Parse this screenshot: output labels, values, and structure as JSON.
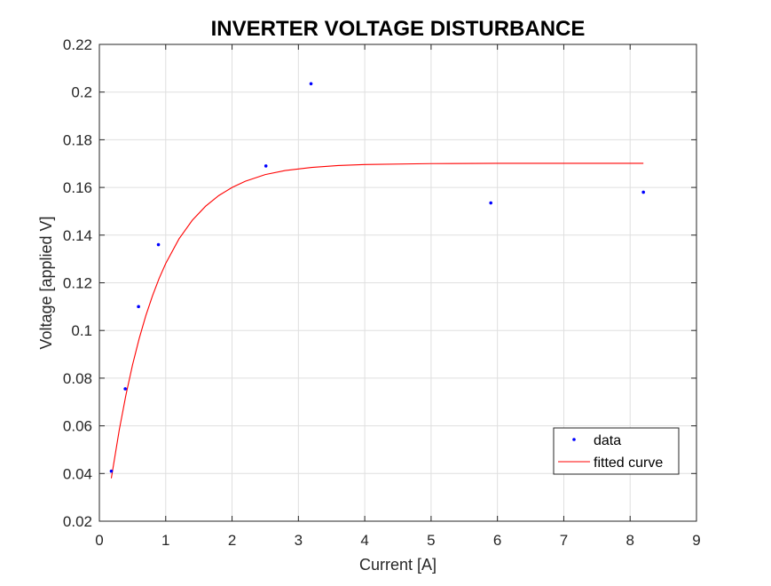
{
  "chart_data": {
    "type": "scatter",
    "title": "INVERTER VOLTAGE DISTURBANCE",
    "xlabel": "Current [A]",
    "ylabel": "Voltage [applied V]",
    "xlim": [
      0,
      9
    ],
    "ylim": [
      0.02,
      0.22
    ],
    "xticks": [
      0,
      1,
      2,
      3,
      4,
      5,
      6,
      7,
      8,
      9
    ],
    "yticks": [
      0.02,
      0.04,
      0.06,
      0.08,
      0.1,
      0.12,
      0.14,
      0.16,
      0.18,
      0.2,
      0.22
    ],
    "xtick_labels": [
      "0",
      "1",
      "2",
      "3",
      "4",
      "5",
      "6",
      "7",
      "8",
      "9"
    ],
    "ytick_labels": [
      "0.02",
      "0.04",
      "0.06",
      "0.08",
      "0.1",
      "0.12",
      "0.14",
      "0.16",
      "0.18",
      "0.2",
      "0.22"
    ],
    "grid": true,
    "legend_position": "bottom-right",
    "series": [
      {
        "name": "data",
        "style": "points",
        "color": "#0000ff",
        "x": [
          0.18,
          0.39,
          0.59,
          0.89,
          2.51,
          3.19,
          5.9,
          8.2
        ],
        "y": [
          0.041,
          0.0755,
          0.11,
          0.136,
          0.169,
          0.2035,
          0.1535,
          0.158
        ]
      },
      {
        "name": "fitted curve",
        "style": "line",
        "color": "#ff0000",
        "x": [
          0.18,
          0.3,
          0.4,
          0.5,
          0.6,
          0.7,
          0.8,
          0.9,
          1.0,
          1.2,
          1.4,
          1.6,
          1.8,
          2.0,
          2.2,
          2.5,
          2.8,
          3.2,
          3.6,
          4.0,
          5.0,
          6.0,
          7.0,
          8.2
        ],
        "y": [
          0.038,
          0.0583,
          0.0729,
          0.0856,
          0.0966,
          0.1062,
          0.1145,
          0.1218,
          0.1281,
          0.1384,
          0.1462,
          0.1521,
          0.1566,
          0.16,
          0.1626,
          0.1654,
          0.1671,
          0.1684,
          0.1692,
          0.1696,
          0.17,
          0.1701,
          0.1701,
          0.1701
        ]
      }
    ]
  }
}
